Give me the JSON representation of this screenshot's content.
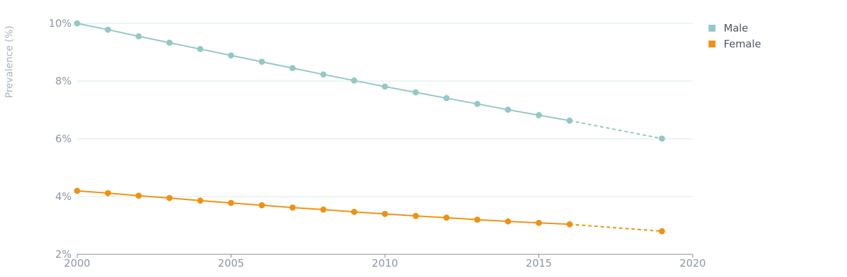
{
  "chart_data": {
    "type": "line",
    "ylabel": "Prevalence (%)",
    "xlabel": "",
    "xlim": [
      2000,
      2020
    ],
    "ylim": [
      2,
      10
    ],
    "x_ticks": [
      2000,
      2005,
      2010,
      2015,
      2020
    ],
    "y_ticks": [
      2,
      4,
      6,
      8,
      10
    ],
    "x_tick_labels": [
      "2000",
      "2005",
      "2010",
      "2015",
      "2020"
    ],
    "y_tick_labels": [
      "2%",
      "4%",
      "6%",
      "8%",
      "10%"
    ],
    "grid": "horizontal",
    "legend_position": "top-right",
    "series": [
      {
        "name": "Male",
        "color": "#93c8c6",
        "x": [
          2000,
          2001,
          2002,
          2003,
          2004,
          2005,
          2006,
          2007,
          2008,
          2009,
          2010,
          2011,
          2012,
          2013,
          2014,
          2015,
          2016
        ],
        "values": [
          10.0,
          9.78,
          9.55,
          9.33,
          9.11,
          8.89,
          8.67,
          8.45,
          8.23,
          8.02,
          7.81,
          7.61,
          7.41,
          7.21,
          7.01,
          6.82,
          6.63
        ],
        "projection": {
          "x": [
            2016,
            2019
          ],
          "values": [
            6.63,
            6.01
          ]
        }
      },
      {
        "name": "Female",
        "color": "#ef9210",
        "x": [
          2000,
          2001,
          2002,
          2003,
          2004,
          2005,
          2006,
          2007,
          2008,
          2009,
          2010,
          2011,
          2012,
          2013,
          2014,
          2015,
          2016
        ],
        "values": [
          4.2,
          4.12,
          4.03,
          3.95,
          3.86,
          3.78,
          3.7,
          3.62,
          3.55,
          3.47,
          3.4,
          3.33,
          3.27,
          3.2,
          3.14,
          3.09,
          3.04
        ],
        "projection": {
          "x": [
            2016,
            2019
          ],
          "values": [
            3.04,
            2.8
          ]
        }
      }
    ]
  }
}
